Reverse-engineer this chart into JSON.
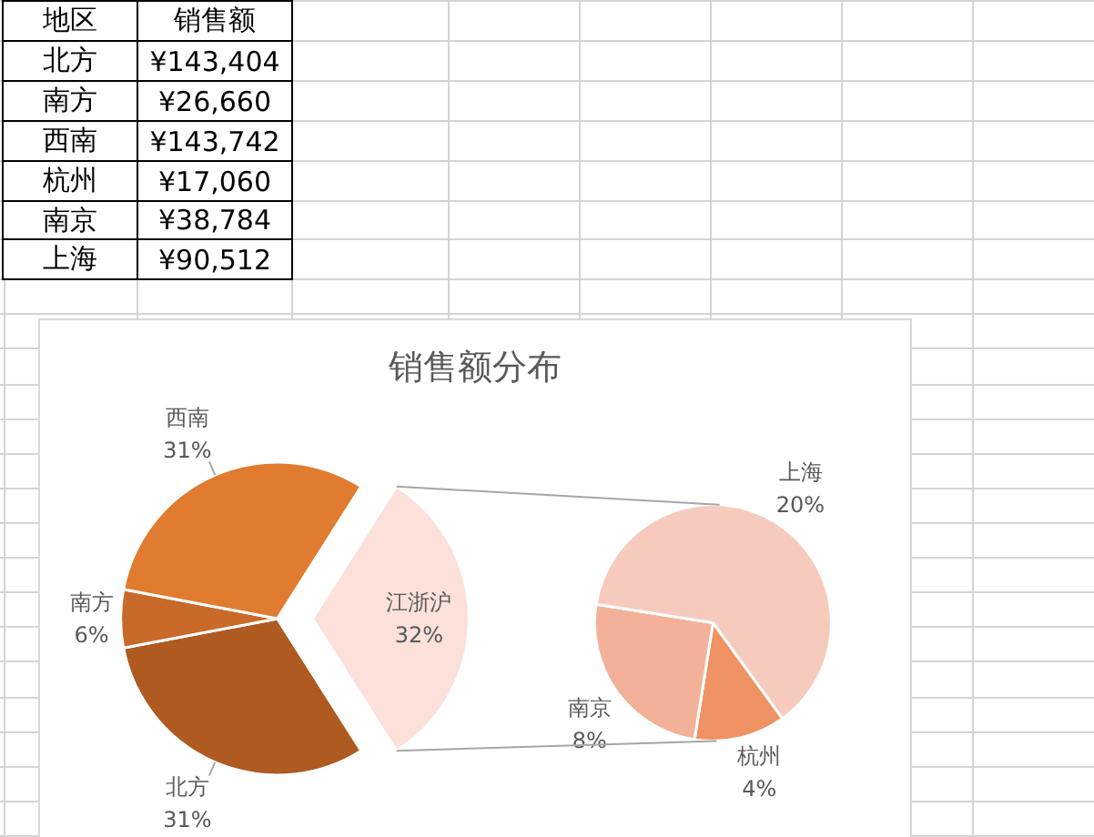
{
  "chart_data": [
    {
      "type": "other",
      "xlabel": "地区",
      "ylabel": "销售额",
      "categories": [
        "北方",
        "南方",
        "西南",
        "杭州",
        "南京",
        "上海"
      ],
      "value_labels": [
        "¥143,404",
        "¥26,660",
        "¥143,742",
        "¥17,060",
        "¥38,784",
        "¥90,512"
      ]
    },
    {
      "type": "pie",
      "title": "销售额分布",
      "categories": [
        "北方",
        "南方",
        "西南",
        "江浙沪"
      ],
      "values": [
        31,
        6,
        31,
        32
      ],
      "colors": [
        "#ae5a21",
        "#c9692a",
        "#e07b2f",
        "#fbe1d9"
      ],
      "value_labels": [
        "31%",
        "6%",
        "31%",
        "32%"
      ]
    },
    {
      "type": "pie",
      "categories": [
        "杭州",
        "南京",
        "上海"
      ],
      "values": [
        4,
        8,
        20
      ],
      "colors": [
        "#ef9364",
        "#f3b19a",
        "#f6cbbd"
      ],
      "value_labels": [
        "4%",
        "8%",
        "20%"
      ]
    }
  ]
}
